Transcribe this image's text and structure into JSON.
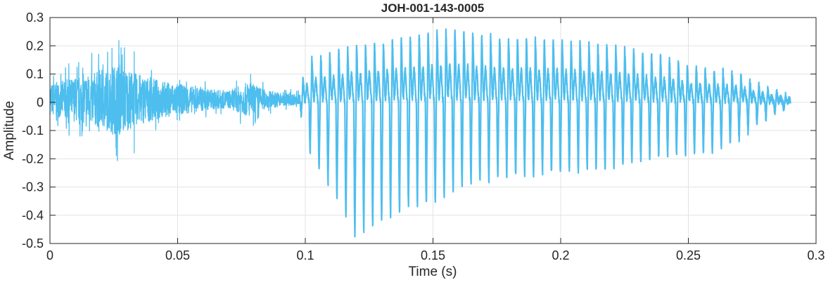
{
  "chart_data": {
    "type": "line",
    "title": "JOH-001-143-0005",
    "xlabel": "Time (s)",
    "ylabel": "Amplitude",
    "xlim": [
      0,
      0.3
    ],
    "ylim": [
      -0.5,
      0.3
    ],
    "xticks": [
      0,
      0.05,
      0.1,
      0.15,
      0.2,
      0.25,
      0.3
    ],
    "xtick_labels": [
      "0",
      "0.05",
      "0.1",
      "0.15",
      "0.2",
      "0.25",
      "0.3"
    ],
    "yticks": [
      0.3,
      0.2,
      0.1,
      0,
      -0.1,
      -0.2,
      -0.3,
      -0.4,
      -0.5
    ],
    "ytick_labels": [
      "0.3",
      "0.2",
      "0.1",
      "0",
      "-0.1",
      "-0.2",
      "-0.3",
      "-0.4",
      "-0.5"
    ],
    "grid": true,
    "series": [
      {
        "name": "waveform",
        "color": "#4DBEEE",
        "unvoiced_segment": {
          "t_range": [
            0,
            0.098
          ],
          "envelope": [
            [
              0,
              0.07
            ],
            [
              0.01,
              0.1
            ],
            [
              0.02,
              0.13
            ],
            [
              0.027,
              0.16
            ],
            [
              0.033,
              0.12
            ],
            [
              0.045,
              0.08
            ],
            [
              0.06,
              0.05
            ],
            [
              0.07,
              0.04
            ],
            [
              0.078,
              0.08
            ],
            [
              0.085,
              0.04
            ],
            [
              0.097,
              0.025
            ]
          ],
          "peaks": [
            [
              0.027,
              0.22
            ],
            [
              0.026,
              -0.19
            ],
            [
              0.033,
              0.18
            ],
            [
              0.033,
              -0.18
            ]
          ]
        },
        "voiced_segment": {
          "t_range": [
            0.098,
            0.29
          ],
          "period_s": 0.0035,
          "env_max": [
            [
              0.098,
              0.05
            ],
            [
              0.102,
              0.15
            ],
            [
              0.11,
              0.17
            ],
            [
              0.12,
              0.2
            ],
            [
              0.135,
              0.22
            ],
            [
              0.157,
              0.26
            ],
            [
              0.175,
              0.23
            ],
            [
              0.2,
              0.22
            ],
            [
              0.22,
              0.2
            ],
            [
              0.24,
              0.16
            ],
            [
              0.255,
              0.12
            ],
            [
              0.27,
              0.1
            ],
            [
              0.28,
              0.05
            ],
            [
              0.29,
              0.02
            ]
          ],
          "env_min": [
            [
              0.098,
              -0.03
            ],
            [
              0.101,
              -0.15
            ],
            [
              0.104,
              -0.22
            ],
            [
              0.108,
              -0.27
            ],
            [
              0.112,
              -0.33
            ],
            [
              0.116,
              -0.41
            ],
            [
              0.12,
              -0.48
            ],
            [
              0.125,
              -0.44
            ],
            [
              0.135,
              -0.39
            ],
            [
              0.15,
              -0.35
            ],
            [
              0.16,
              -0.3
            ],
            [
              0.18,
              -0.26
            ],
            [
              0.2,
              -0.25
            ],
            [
              0.22,
              -0.23
            ],
            [
              0.24,
              -0.19
            ],
            [
              0.26,
              -0.17
            ],
            [
              0.27,
              -0.13
            ],
            [
              0.28,
              -0.06
            ],
            [
              0.29,
              -0.01
            ]
          ]
        }
      }
    ]
  }
}
